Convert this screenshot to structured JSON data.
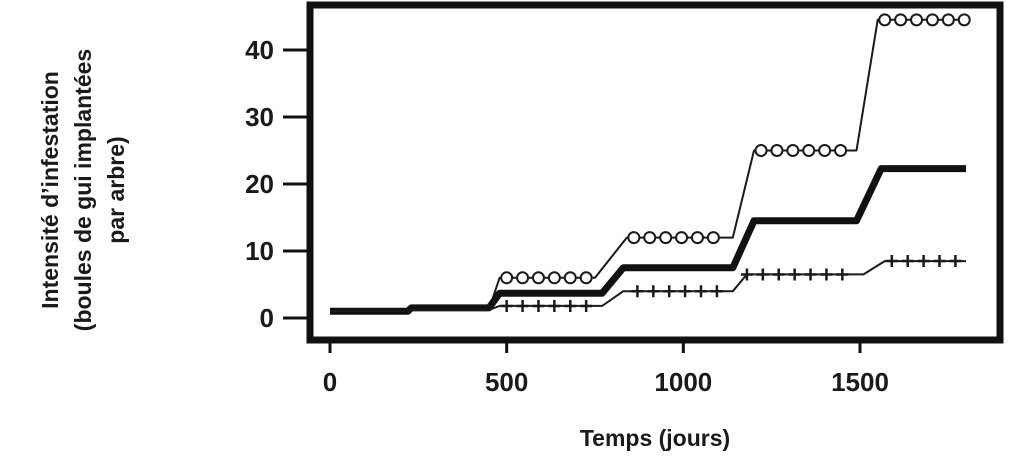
{
  "chart_data": {
    "type": "line",
    "xlabel": "Temps (jours)",
    "ylabel_lines": [
      "Intensité d’infestation",
      "(boules de gui implantées",
      "par arbre)"
    ],
    "xlim": [
      0,
      1800
    ],
    "ylim": [
      0,
      45
    ],
    "x_ticks": [
      0,
      500,
      1000,
      1500
    ],
    "y_ticks": [
      0,
      10,
      20,
      30,
      40
    ],
    "grid": false,
    "legend": "none",
    "series": [
      {
        "marker": "circle",
        "color": "#1a1a1a",
        "points": [
          [
            0,
            1
          ],
          [
            220,
            1
          ],
          [
            230,
            1.3
          ],
          [
            450,
            1.3
          ],
          [
            480,
            6
          ],
          [
            750,
            6
          ],
          [
            840,
            12
          ],
          [
            1140,
            12
          ],
          [
            1200,
            25
          ],
          [
            1490,
            25
          ],
          [
            1550,
            44.5
          ],
          [
            1800,
            44.5
          ]
        ],
        "marker_x": [
          500,
          545,
          590,
          635,
          680,
          725,
          860,
          905,
          950,
          995,
          1040,
          1085,
          1220,
          1265,
          1310,
          1355,
          1400,
          1445,
          1570,
          1615,
          1660,
          1705,
          1750,
          1795
        ]
      },
      {
        "marker": "none",
        "color": "#111111",
        "points": [
          [
            0,
            1
          ],
          [
            220,
            1
          ],
          [
            230,
            1.5
          ],
          [
            450,
            1.5
          ],
          [
            480,
            3.7
          ],
          [
            770,
            3.7
          ],
          [
            830,
            7.5
          ],
          [
            1140,
            7.5
          ],
          [
            1200,
            14.5
          ],
          [
            1490,
            14.5
          ],
          [
            1560,
            22.3
          ],
          [
            1800,
            22.3
          ]
        ]
      },
      {
        "marker": "plus",
        "color": "#1a1a1a",
        "points": [
          [
            0,
            1
          ],
          [
            220,
            1
          ],
          [
            230,
            1.2
          ],
          [
            450,
            1.2
          ],
          [
            480,
            1.8
          ],
          [
            770,
            1.8
          ],
          [
            830,
            4
          ],
          [
            1140,
            4
          ],
          [
            1180,
            6.5
          ],
          [
            1510,
            6.5
          ],
          [
            1570,
            8.5
          ],
          [
            1800,
            8.5
          ]
        ],
        "marker_x": [
          500,
          545,
          590,
          635,
          680,
          725,
          870,
          915,
          960,
          1005,
          1050,
          1095,
          1180,
          1225,
          1270,
          1315,
          1360,
          1405,
          1450,
          1590,
          1635,
          1680,
          1725,
          1770
        ]
      }
    ]
  }
}
